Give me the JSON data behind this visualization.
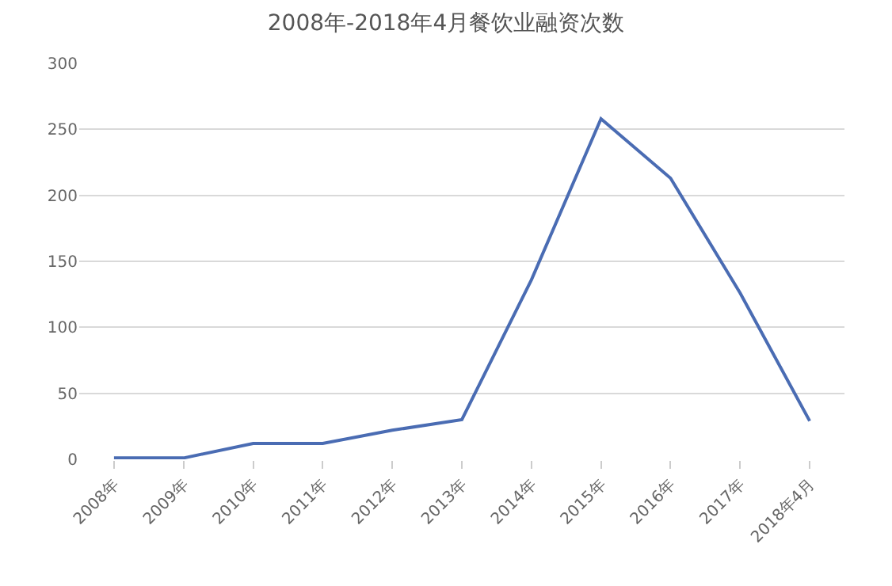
{
  "chart_data": {
    "type": "line",
    "title": "2008年-2018年4月餐饮业融资次数",
    "categories": [
      "2008年",
      "2009年",
      "2010年",
      "2011年",
      "2012年",
      "2013年",
      "2014年",
      "2015年",
      "2016年",
      "2017年",
      "2018年4月"
    ],
    "series": [
      {
        "color": "#4a6cb3",
        "values": [
          1,
          1,
          12,
          12,
          22,
          30,
          136,
          258,
          213,
          126,
          29
        ]
      }
    ],
    "ylim": [
      0,
      300
    ],
    "yticks": [
      0,
      50,
      100,
      150,
      200,
      250,
      300
    ],
    "grid": "y",
    "legend": false,
    "marker": "none",
    "line_style": "solid"
  }
}
